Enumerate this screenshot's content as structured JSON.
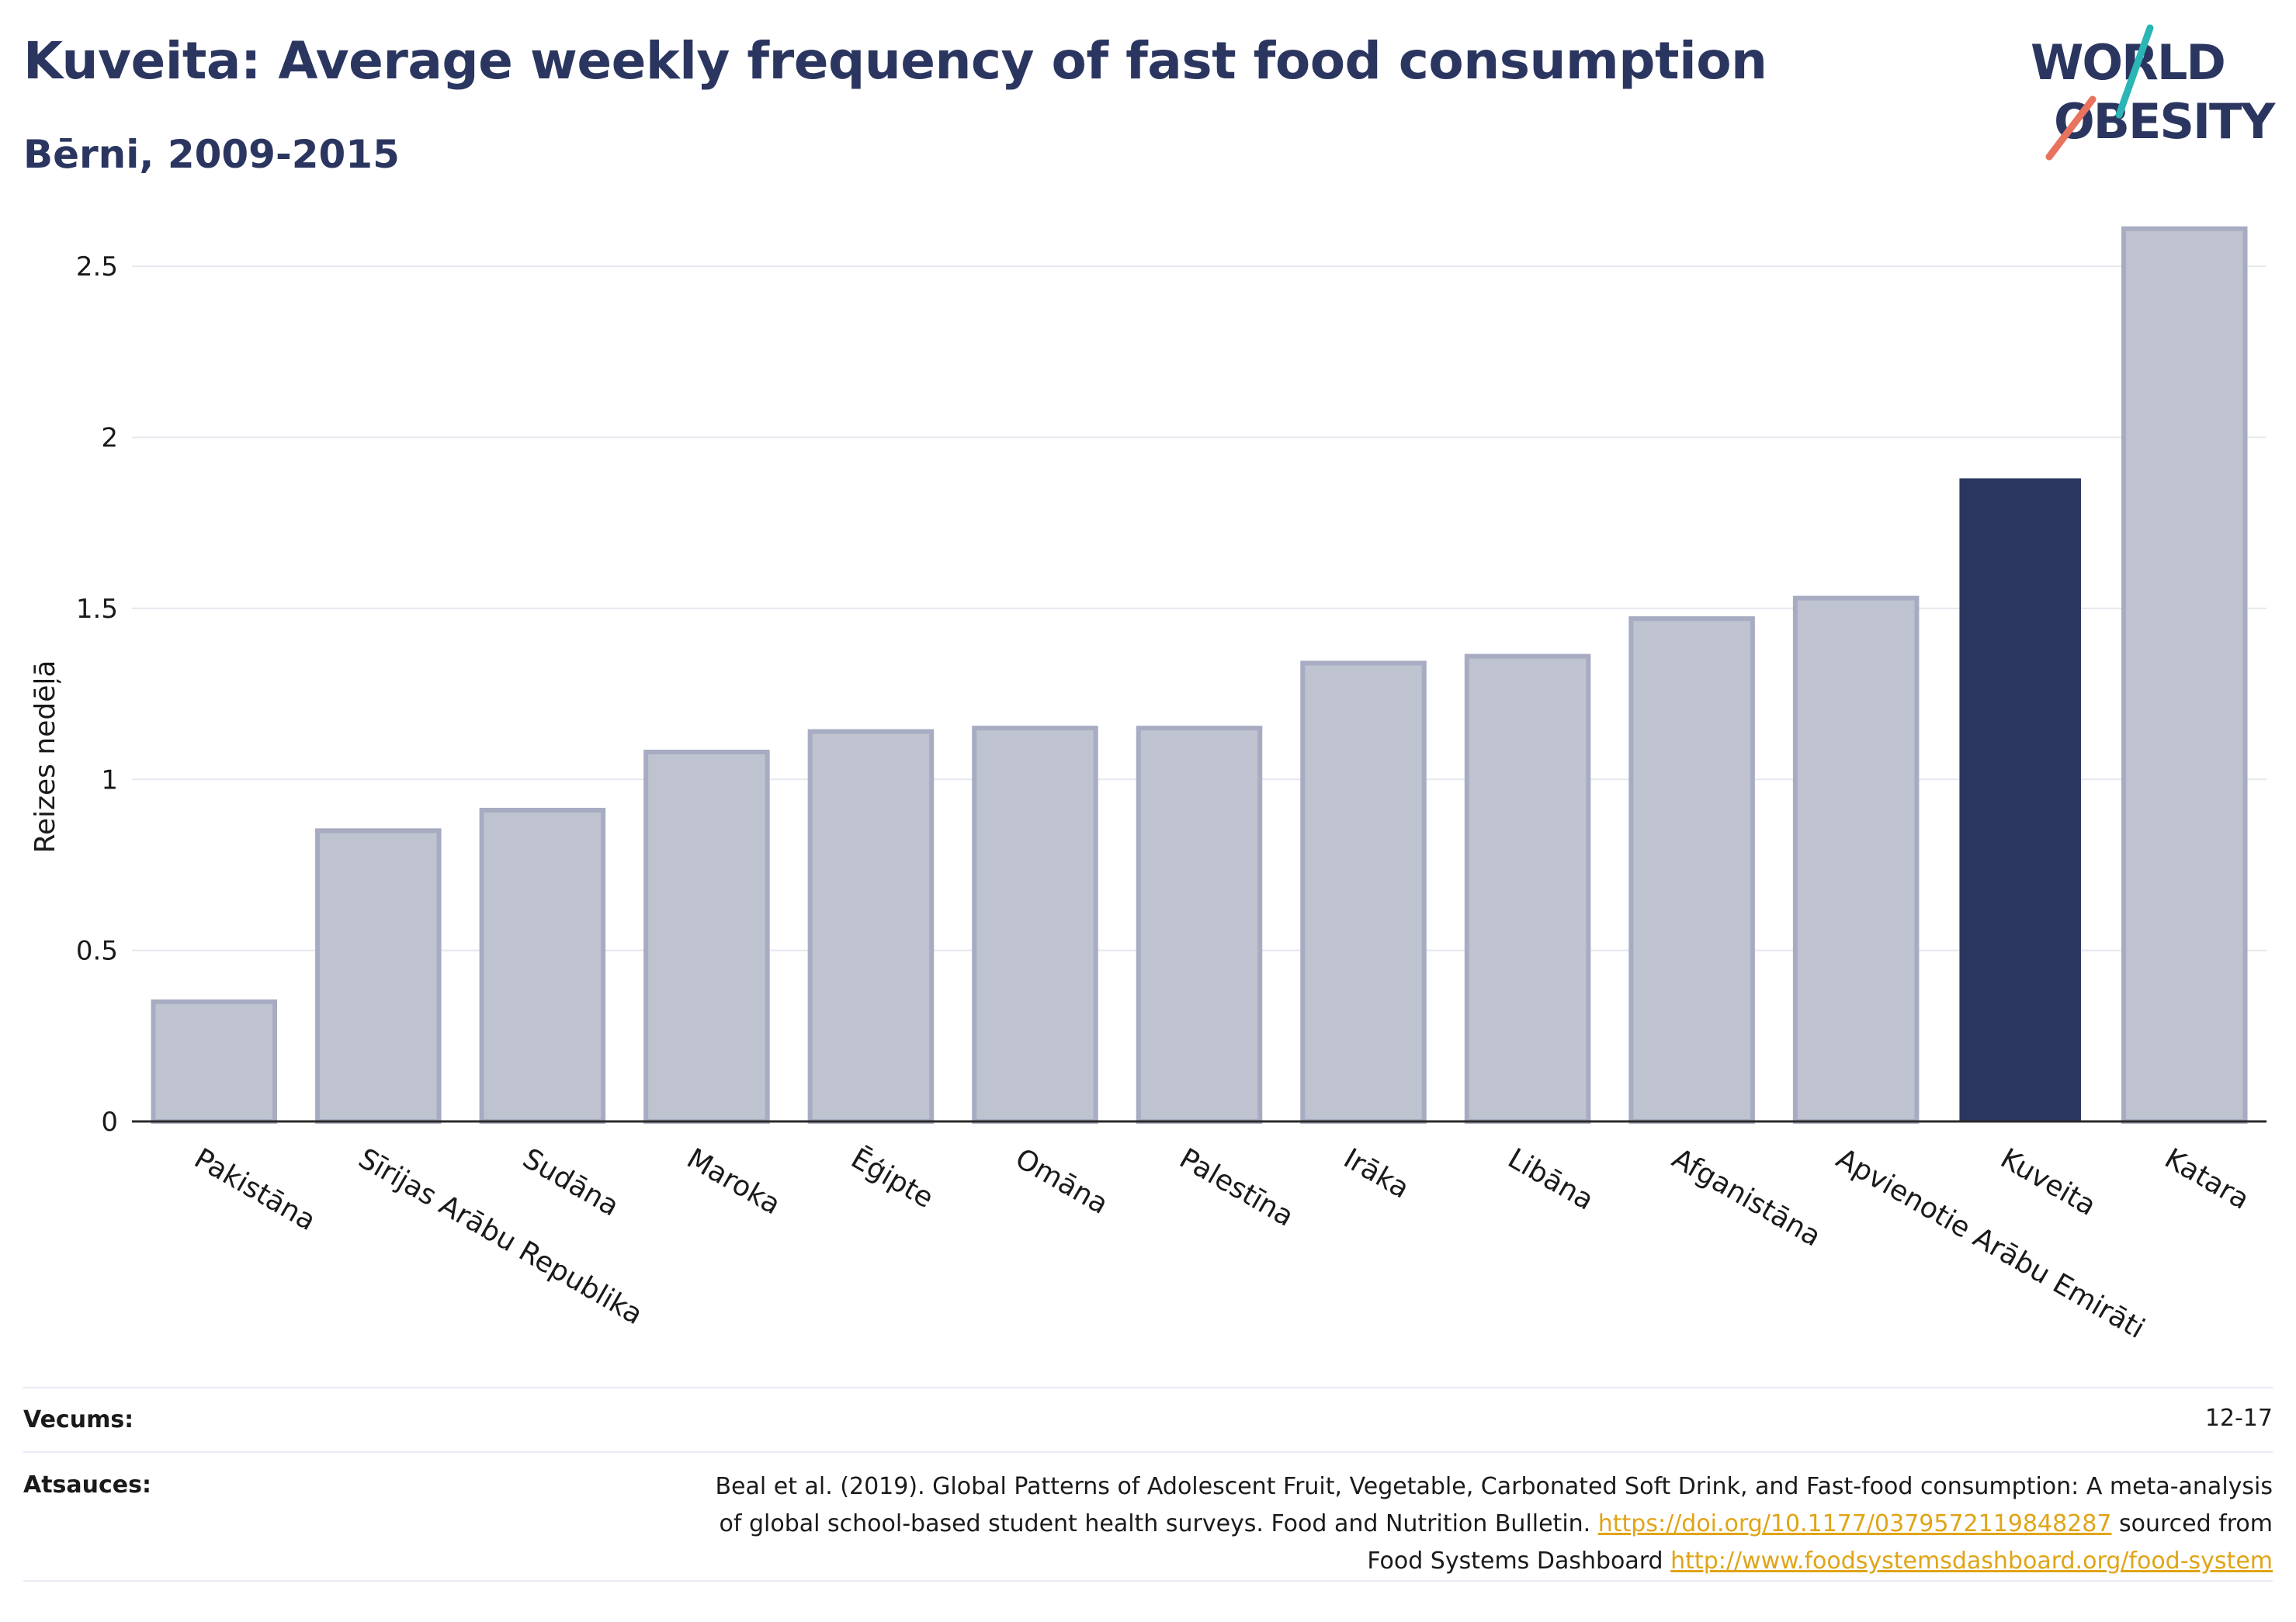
{
  "header": {
    "title": "Kuveita: Average weekly frequency of fast food consumption",
    "subtitle": "Bērni, 2009-2015"
  },
  "logo": {
    "line1": "WORLD",
    "line2": "OBESITY"
  },
  "colors": {
    "title": "#2b3660",
    "bar_default": "#bfc3cf",
    "bar_default_stroke": "#a7acc2",
    "bar_highlight": "#2b3660",
    "logo_teal": "#2bb5b5",
    "logo_coral": "#e8735f",
    "link": "#e0a417"
  },
  "chart_data": {
    "type": "bar",
    "ylabel": "Reizes nedēļā",
    "ylim": [
      0,
      2.7
    ],
    "yticks": [
      0,
      0.5,
      1,
      1.5,
      2,
      2.5
    ],
    "ytick_labels": [
      "0",
      "0.5",
      "1",
      "1.5",
      "2",
      "2.5"
    ],
    "grid": true,
    "categories": [
      "Pakistāna",
      "Sīrijas Arābu Republika",
      "Sudāna",
      "Maroka",
      "Ēģipte",
      "Omāna",
      "Palestīna",
      "Irāka",
      "Libāna",
      "Afganistāna",
      "Apvienotie Arābu Emirāti",
      "Kuveita",
      "Katara"
    ],
    "values": [
      0.35,
      0.85,
      0.91,
      1.08,
      1.14,
      1.15,
      1.15,
      1.34,
      1.36,
      1.47,
      1.53,
      1.88,
      2.61
    ],
    "highlight": "Kuveita"
  },
  "meta": {
    "age_label": "Vecums:",
    "age_value": "12-17",
    "sources_label": "Atsauces:",
    "sources_line1": "Beal et al. (2019). Global Patterns of Adolescent Fruit, Vegetable, Carbonated Soft Drink, and Fast-food consumption: A meta-analysis",
    "sources_line2_text": "of global school-based student health surveys. Food and Nutrition Bulletin.",
    "sources_line2_link": "https://doi.org/10.1177/0379572119848287",
    "sources_line2_tail": "sourced from",
    "sources_line3_text": "Food Systems Dashboard",
    "sources_line3_link": "http://www.foodsystemsdashboard.org/food-system"
  }
}
